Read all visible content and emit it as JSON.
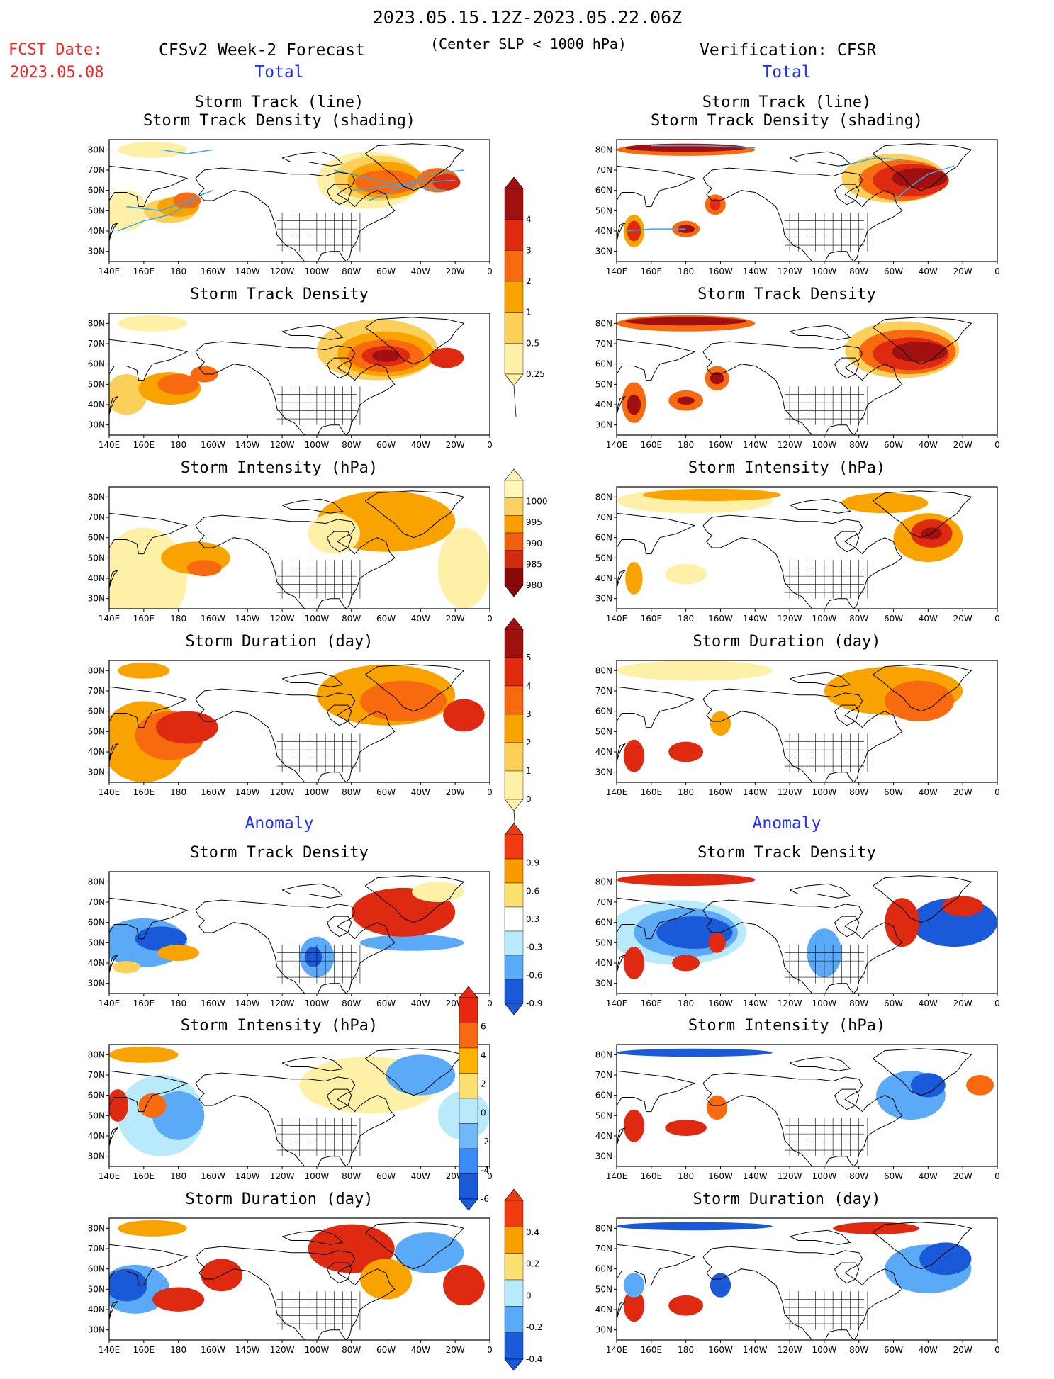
{
  "header": {
    "date_range": "2023.05.15.12Z-2023.05.22.06Z",
    "fcst_label": "FCST Date:",
    "fcst_date": "2023.05.08",
    "left_title": "CFSv2 Week-2 Forecast",
    "criterion": "(Center SLP < 1000 hPa)",
    "right_title": "Verification: CFSR",
    "total_label": "Total",
    "anomaly_label": "Anomaly"
  },
  "axes": {
    "x_ticks": [
      "140E",
      "160E",
      "180",
      "160W",
      "140W",
      "120W",
      "100W",
      "80W",
      "60W",
      "40W",
      "20W",
      "0"
    ],
    "y_ticks": [
      "80N",
      "70N",
      "60N",
      "50N",
      "40N",
      "30N"
    ]
  },
  "panel_titles": {
    "track": [
      "Storm Track (line)",
      "Storm Track Density (shading)"
    ],
    "density": "Storm Track Density",
    "intensity": "Storm Intensity (hPa)",
    "duration": "Storm Duration (day)"
  },
  "colorbars": {
    "density_total": {
      "labels": [
        "4",
        "3",
        "2",
        "1",
        "0.5",
        "0.25"
      ],
      "colors": [
        "#a01010",
        "#dd2a10",
        "#f86a10",
        "#f8a300",
        "#fad05a",
        "#fff0a8"
      ]
    },
    "intensity_total": {
      "labels": [
        "1000",
        "995",
        "990",
        "985",
        "980"
      ],
      "colors": [
        "#fff6b8",
        "#fad060",
        "#f8a000",
        "#f06010",
        "#d02a10",
        "#8a0a0a"
      ]
    },
    "duration_total": {
      "labels": [
        "5",
        "4",
        "3",
        "2",
        "1",
        "0"
      ],
      "colors": [
        "#a01010",
        "#dd2a10",
        "#f86a10",
        "#f8a300",
        "#fad05a",
        "#fff0a8"
      ]
    },
    "density_anom": {
      "labels": [
        "0.9",
        "0.6",
        "0.3",
        "-0.3",
        "-0.6",
        "-0.9"
      ],
      "colors": [
        "#f03a10",
        "#f89a00",
        "#fce070",
        "#ffffff",
        "#b8eafc",
        "#5aaaf8",
        "#1a5ad8"
      ]
    },
    "intensity_anom": {
      "labels": [
        "6",
        "4",
        "2",
        "0",
        "-2",
        "-4",
        "-6"
      ],
      "colors": [
        "#e82810",
        "#f86a10",
        "#fcb400",
        "#fce070",
        "#b8eafc",
        "#70b8f8",
        "#3a8af8",
        "#1a5ad8"
      ]
    },
    "duration_anom": {
      "labels": [
        "0.4",
        "0.2",
        "0",
        "-0.2",
        "-0.4"
      ],
      "colors": [
        "#f03a10",
        "#f8a000",
        "#fce070",
        "#b8eafc",
        "#5aaaf8",
        "#1a5ad8"
      ]
    }
  },
  "palette": {
    "light_yellow": "#fff0a8",
    "yellow": "#fad05a",
    "light_orange": "#f8a300",
    "orange": "#f86a10",
    "red": "#dd2a10",
    "dark_red": "#a01010",
    "light_blue": "#b8eafc",
    "mid_blue": "#5aaaf8",
    "dark_blue": "#1a5ad8",
    "track_line": "#3aa8e8"
  }
}
